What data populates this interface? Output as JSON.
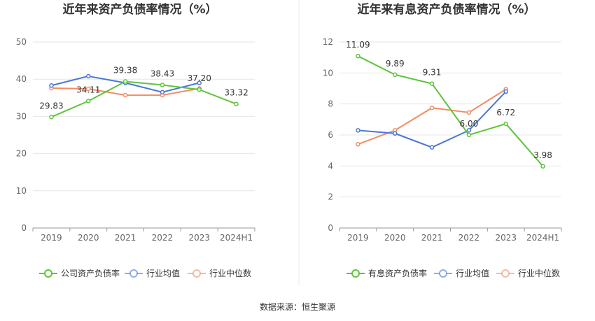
{
  "source": "数据来源：恒生聚源",
  "colors": {
    "company": "#5ec53b",
    "industry_avg": "#4a78d8",
    "industry_median": "#f28d64",
    "grid": "#e6e6e6",
    "divider": "#e8e8e8"
  },
  "chart_data": [
    {
      "type": "line",
      "title": "近年来资产负债率情况（%）",
      "categories": [
        "2019",
        "2020",
        "2021",
        "2022",
        "2023",
        "2024H1"
      ],
      "ylim": [
        0,
        50
      ],
      "yticks": [
        "0",
        "10",
        "20",
        "30",
        "40",
        "50"
      ],
      "series": [
        {
          "name": "公司资产负债率",
          "role": "company",
          "values": [
            29.83,
            34.11,
            39.38,
            38.43,
            37.2,
            33.32
          ],
          "labels": [
            "29.83",
            "34.11",
            "39.38",
            "38.43",
            "37.20",
            "33.32"
          ]
        },
        {
          "name": "行业均值",
          "role": "industry_avg",
          "values": [
            38.3,
            40.8,
            39.0,
            36.5,
            39.0,
            null
          ]
        },
        {
          "name": "行业中位数",
          "role": "industry_median",
          "values": [
            37.6,
            37.4,
            35.7,
            35.7,
            37.5,
            null
          ]
        }
      ]
    },
    {
      "type": "line",
      "title": "近年来有息资产负债率情况（%）",
      "categories": [
        "2019",
        "2020",
        "2021",
        "2022",
        "2023",
        "2024H1"
      ],
      "ylim": [
        0,
        12
      ],
      "yticks": [
        "0",
        "2",
        "4",
        "6",
        "8",
        "10",
        "12"
      ],
      "series": [
        {
          "name": "有息资产负债率",
          "role": "company",
          "values": [
            11.09,
            9.89,
            9.31,
            6.0,
            6.72,
            3.98
          ],
          "labels": [
            "11.09",
            "9.89",
            "9.31",
            "6.00",
            "6.72",
            "3.98"
          ]
        },
        {
          "name": "行业均值",
          "role": "industry_avg",
          "values": [
            6.3,
            6.1,
            5.2,
            6.3,
            8.8,
            null
          ]
        },
        {
          "name": "行业中位数",
          "role": "industry_median",
          "values": [
            5.4,
            6.3,
            7.75,
            7.45,
            8.95,
            null
          ]
        }
      ]
    }
  ]
}
